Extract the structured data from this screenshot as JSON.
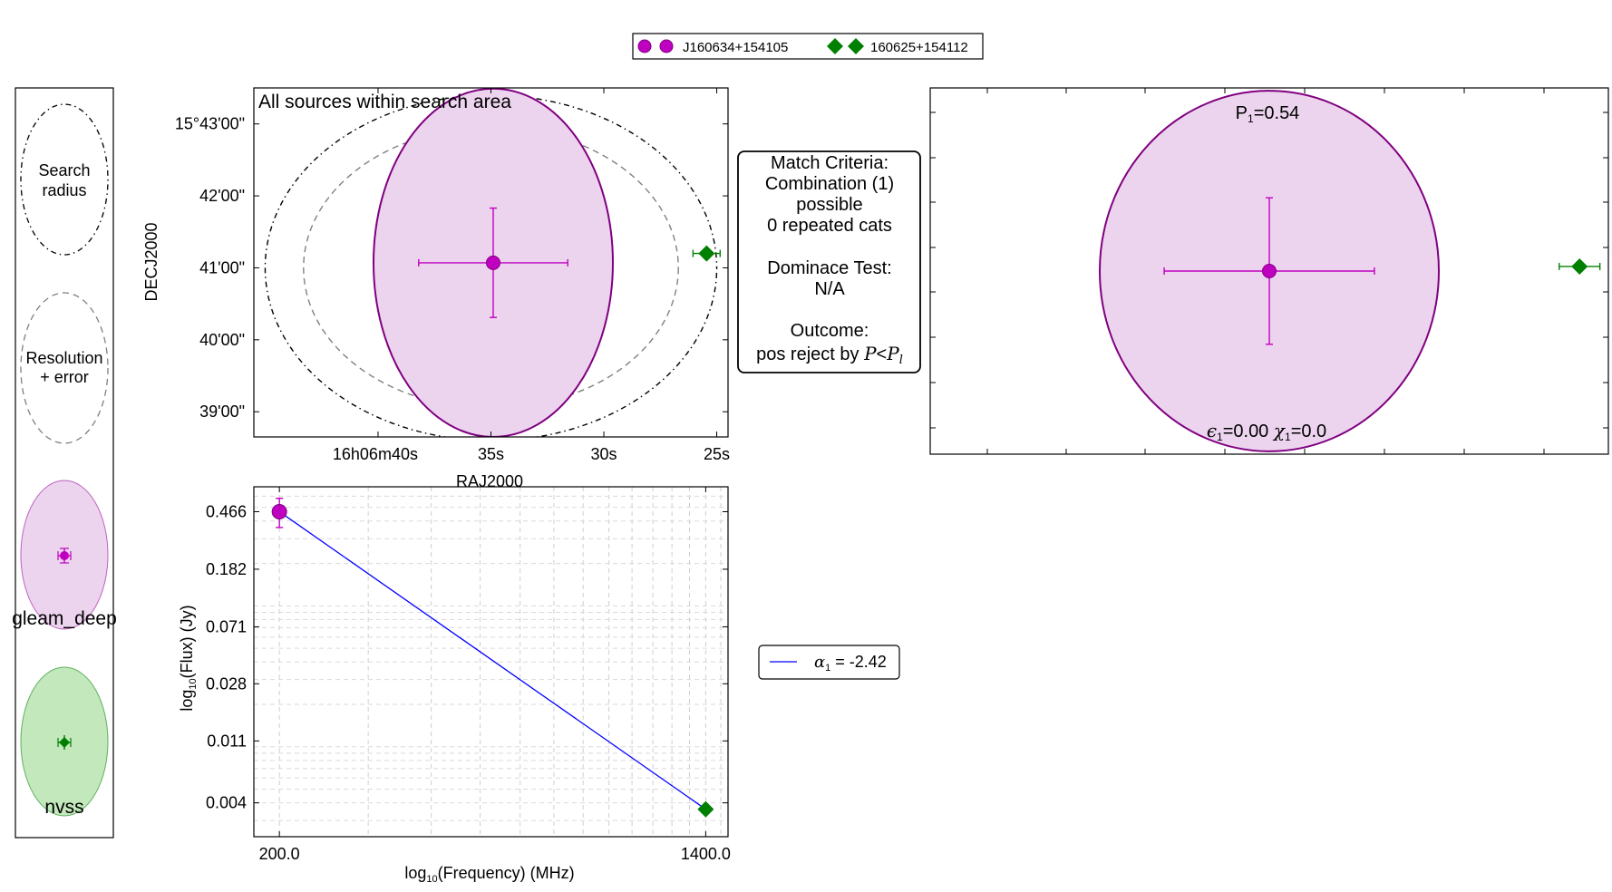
{
  "colors": {
    "gleam": "#c000c0",
    "gleam_dark": "#800080",
    "gleam_fill": "#ecd4ee",
    "nvss": "#008000",
    "nvss_fill": "#c2e8bb",
    "fit_line": "#0000ff",
    "grey_dash": "#808080"
  },
  "top_legend": {
    "entries": [
      {
        "label": "J160634+154105",
        "color": "#c000c0"
      },
      {
        "label": "160625+154112",
        "color": "#008000"
      }
    ]
  },
  "key_panel": {
    "search_label_1": "Search",
    "search_label_2": "radius",
    "resolution_label_1": "Resolution",
    "resolution_label_2": "+ error",
    "gleam_label": "gleam_deep",
    "nvss_label": "nvss"
  },
  "match_box": {
    "line1": "Match Criteria:",
    "line2": "Combination (1)",
    "line3": "possible",
    "line4": "0 repeated cats",
    "line5": "Dominace Test:",
    "line6": "N/A",
    "line7": "Outcome:",
    "line8_prefix": "pos reject by ",
    "line8_math_P": "P",
    "line8_math_lt": "<",
    "line8_math_Pl": "P",
    "line8_math_sub": "l"
  },
  "zoom_panel": {
    "p_label": "P",
    "p_sub": "1",
    "p_value": "=0.54",
    "eps_symbol": "ϵ",
    "eps_sub": "1",
    "eps_value": "=0.00",
    "chi_symbol": "χ",
    "chi_sub": "1",
    "chi_value": "=0.0"
  },
  "sed_legend": {
    "alpha_symbol": "α",
    "alpha_sub": "1",
    "alpha_value": " = -2.42"
  },
  "chart_data": [
    {
      "type": "scatter",
      "title": "All sources within search area",
      "xlabel": "RAJ2000",
      "ylabel": "DECJ2000",
      "x_ticks": [
        {
          "label": "16h06m40s",
          "ra_s": 40
        },
        {
          "label": "35s",
          "ra_s": 35
        },
        {
          "label": "30s",
          "ra_s": 30
        },
        {
          "label": "25s",
          "ra_s": 25
        }
      ],
      "y_ticks": [
        {
          "label": "15°43'00\"",
          "dec_arcmin": 43
        },
        {
          "label": "42'00\"",
          "dec_arcmin": 42
        },
        {
          "label": "41'00\"",
          "dec_arcmin": 41
        },
        {
          "label": "40'00\"",
          "dec_arcmin": 40
        },
        {
          "label": "39'00\"",
          "dec_arcmin": 39
        }
      ],
      "xlim_ra_s": [
        45.5,
        24.5
      ],
      "ylim_dec_arcmin": [
        38.65,
        43.5
      ],
      "search_radius": {
        "ra_s": 35,
        "dec_arcmin": 41.0,
        "semi_ra_s": 10.0,
        "semi_dec_arcmin": 2.4
      },
      "resolution_error": {
        "ra_s": 35,
        "dec_arcmin": 41.0,
        "semi_ra_s": 8.3,
        "semi_dec_arcmin": 1.95
      },
      "sources": [
        {
          "name": "gleam_deep",
          "ra_s": 34.9,
          "dec_arcmin": 41.07,
          "err_ra_s": 3.3,
          "err_dec_arcmin": 0.76,
          "ellipse_semi_ra_s": 5.3,
          "ellipse_semi_dec_arcmin": 2.42
        },
        {
          "name": "nvss",
          "ra_s": 25.45,
          "dec_arcmin": 41.2,
          "err_ra_s": 0.6,
          "err_dec_arcmin": 0.05
        }
      ]
    },
    {
      "type": "line",
      "xlabel": "log10(Frequency) (MHz)",
      "ylabel": "log10(Flux) (Jy)",
      "x_ticks": [
        "200.0",
        "1400.0"
      ],
      "y_ticks": [
        "0.466",
        "0.182",
        "0.071",
        "0.028",
        "0.011",
        "0.004"
      ],
      "log_scale": true,
      "grid": true,
      "points": [
        {
          "name": "gleam_deep",
          "frequency_mhz": 200.0,
          "flux_jy": 0.466,
          "err_low_jy": 0.36,
          "err_high_jy": 0.58
        },
        {
          "name": "nvss",
          "frequency_mhz": 1400.0,
          "flux_jy": 0.0036,
          "err_low_jy": 0.0034,
          "err_high_jy": 0.0038
        }
      ],
      "fit": {
        "spectral_index": -2.42
      },
      "xlim_mhz": [
        178,
        1550
      ],
      "ylim_jy": [
        0.0023,
        0.7
      ]
    },
    {
      "type": "scatter",
      "probability": 0.54,
      "epsilon": 0.0,
      "chi": 0.0,
      "sources": [
        {
          "name": "gleam_deep",
          "dx": 0.0,
          "dy": 0.0,
          "err_x": 0.62,
          "err_y": 0.5,
          "ellipse_semi_x": 1.0,
          "ellipse_semi_y": 1.5
        },
        {
          "name": "nvss",
          "dx": 1.83,
          "dy": 0.04,
          "err_x": 0.12,
          "err_y": 0.0
        }
      ],
      "xlim": [
        -2.0,
        2.0
      ],
      "ylim": [
        -1.6,
        1.6
      ]
    }
  ]
}
